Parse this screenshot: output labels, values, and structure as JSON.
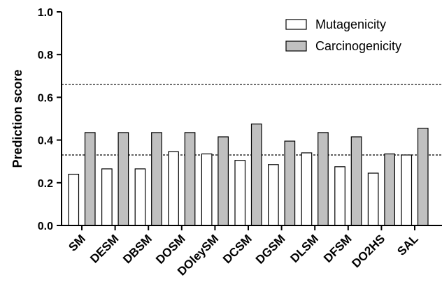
{
  "chart_data": {
    "type": "bar",
    "ylabel": "Prediction score",
    "xlabel": "",
    "ylim": [
      0,
      1.0
    ],
    "yticks": [
      "0.0",
      "0.2",
      "0.4",
      "0.6",
      "0.8",
      "1.0"
    ],
    "grid": false,
    "legend_position": "top-right",
    "categories": [
      "SM",
      "DESM",
      "DBSM",
      "DOSM",
      "DOleySM",
      "DCSM",
      "DGSM",
      "DLSM",
      "DFSM",
      "DO2HS",
      "SAL"
    ],
    "series": [
      {
        "name": "Mutagenicity",
        "color": "#ffffff",
        "values": [
          0.24,
          0.265,
          0.265,
          0.345,
          0.335,
          0.305,
          0.285,
          0.34,
          0.275,
          0.245,
          0.33
        ]
      },
      {
        "name": "Carcinogenicity",
        "color": "#c0c0c0",
        "values": [
          0.435,
          0.435,
          0.435,
          0.435,
          0.415,
          0.475,
          0.395,
          0.435,
          0.415,
          0.335,
          0.455
        ]
      }
    ],
    "reference_lines": [
      0.66,
      0.33
    ]
  }
}
